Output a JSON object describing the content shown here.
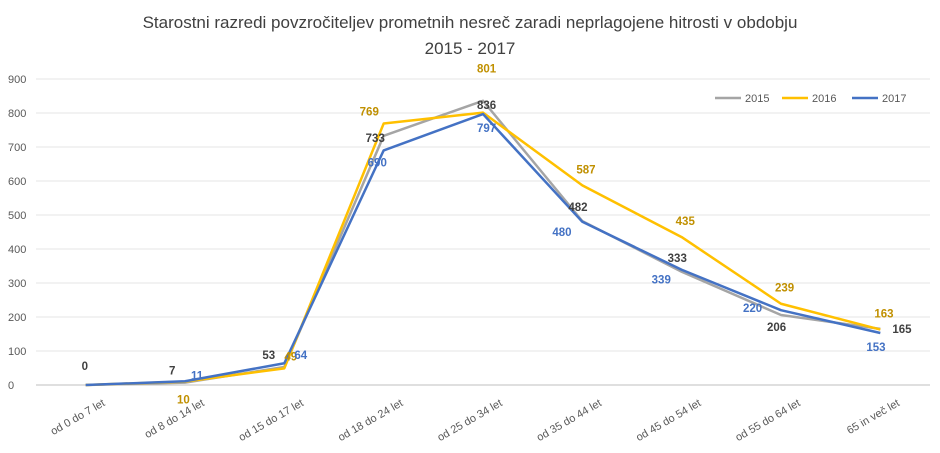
{
  "chart_data": {
    "type": "line",
    "title": [
      "Starostni razredi povzročiteljev prometnih nesreč zaradi neprlagojene hitrosti v obdobju",
      "2015 - 2017"
    ],
    "categories": [
      "od 0 do 7 let",
      "od 8 do 14 let",
      "od 15 do 17 let",
      "od 18 do 24 let",
      "od 25 do 34 let",
      "od 35 do 44 let",
      "od 45 do 54 let",
      "od 55 do 64 let",
      "65 in več let"
    ],
    "ylim": [
      0,
      900
    ],
    "yticks": [
      "0",
      "100",
      "200",
      "300",
      "400",
      "500",
      "600",
      "700",
      "800",
      "900"
    ],
    "grid": true,
    "legend_position": "top-right",
    "series": [
      {
        "name": "2015",
        "color": "#a5a5a5",
        "label_color": "#404040",
        "values": [
          0,
          7,
          53,
          733,
          836,
          482,
          333,
          206,
          165
        ]
      },
      {
        "name": "2016",
        "color": "#ffc000",
        "label_color": "#c09000",
        "values": [
          0,
          10,
          49,
          769,
          801,
          587,
          435,
          239,
          163
        ]
      },
      {
        "name": "2017",
        "color": "#4472c4",
        "label_color": "#4472c4",
        "values": [
          0,
          11,
          64,
          690,
          797,
          480,
          339,
          220,
          153
        ]
      }
    ],
    "shown_zero_label": "0"
  }
}
